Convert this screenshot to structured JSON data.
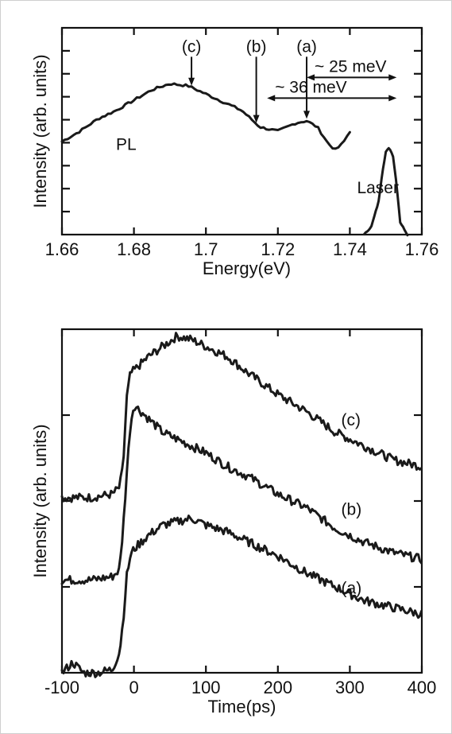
{
  "chart_data": [
    {
      "type": "line",
      "title": "",
      "xlabel": "Energy(eV)",
      "ylabel": "Intensity (arb. units)",
      "xlim": [
        1.66,
        1.76
      ],
      "ylim": [
        0,
        1
      ],
      "x_ticks": [
        1.66,
        1.68,
        1.7,
        1.72,
        1.74,
        1.76
      ],
      "x_tick_labels": [
        "1.66",
        "1.68",
        "1.7",
        "1.72",
        "1.74",
        "1.76"
      ],
      "y_tick_count": 8,
      "grid": false,
      "series": [
        {
          "name": "PL",
          "x": [
            1.66,
            1.665,
            1.67,
            1.675,
            1.68,
            1.685,
            1.69,
            1.695,
            1.7,
            1.705,
            1.71,
            1.715,
            1.72,
            1.725,
            1.728,
            1.731,
            1.734,
            1.736,
            1.738,
            1.74
          ],
          "y": [
            0.45,
            0.5,
            0.56,
            0.6,
            0.65,
            0.7,
            0.73,
            0.72,
            0.68,
            0.64,
            0.6,
            0.52,
            0.5,
            0.54,
            0.55,
            0.52,
            0.44,
            0.41,
            0.44,
            0.5
          ]
        },
        {
          "name": "Laser",
          "x": [
            1.744,
            1.746,
            1.748,
            1.749,
            1.75,
            1.751,
            1.752,
            1.753,
            1.754,
            1.756
          ],
          "y": [
            0.0,
            0.04,
            0.16,
            0.3,
            0.4,
            0.42,
            0.38,
            0.24,
            0.06,
            0.0
          ]
        }
      ],
      "series_labels": [
        {
          "text": "PL",
          "x": 1.675,
          "y": 0.41
        },
        {
          "text": "Laser",
          "x": 1.742,
          "y": 0.2
        }
      ],
      "markers": [
        {
          "label": "(c)",
          "x": 1.696,
          "y_top": 0.86,
          "y_bottom": 0.72
        },
        {
          "label": "(b)",
          "x": 1.714,
          "y_top": 0.86,
          "y_bottom": 0.54
        },
        {
          "label": "(a)",
          "x": 1.728,
          "y_top": 0.86,
          "y_bottom": 0.56
        }
      ],
      "spans": [
        {
          "text": "~ 25 meV",
          "x_start": 1.728,
          "x_end": 1.753,
          "y": 0.76
        },
        {
          "text": "~ 36 meV",
          "x_start": 1.717,
          "x_end": 1.753,
          "y": 0.66
        }
      ]
    },
    {
      "type": "line",
      "title": "",
      "xlabel": "Time(ps)",
      "ylabel": "Intensity (arb. units)",
      "xlim": [
        -100,
        400
      ],
      "ylim": [
        0,
        1
      ],
      "x_ticks": [
        -100,
        0,
        100,
        200,
        300,
        400
      ],
      "x_tick_labels": [
        "-100",
        "0",
        "100",
        "200",
        "300",
        "400"
      ],
      "y_tick_count": 3,
      "grid": false,
      "series": [
        {
          "name": "(c)",
          "x": [
            -100,
            -60,
            -30,
            -20,
            -15,
            -10,
            -5,
            0,
            20,
            40,
            60,
            80,
            100,
            130,
            160,
            200,
            240,
            280,
            320,
            360,
            400
          ],
          "y": [
            0.51,
            0.51,
            0.52,
            0.54,
            0.6,
            0.8,
            0.87,
            0.88,
            0.92,
            0.95,
            0.98,
            0.97,
            0.95,
            0.92,
            0.87,
            0.81,
            0.76,
            0.7,
            0.66,
            0.62,
            0.6
          ]
        },
        {
          "name": "(b)",
          "x": [
            -100,
            -60,
            -30,
            -20,
            -15,
            -10,
            -5,
            0,
            20,
            40,
            60,
            80,
            100,
            130,
            160,
            200,
            240,
            280,
            320,
            360,
            400
          ],
          "y": [
            0.27,
            0.27,
            0.28,
            0.3,
            0.42,
            0.58,
            0.72,
            0.78,
            0.74,
            0.7,
            0.68,
            0.66,
            0.64,
            0.6,
            0.57,
            0.52,
            0.48,
            0.42,
            0.38,
            0.35,
            0.33
          ]
        },
        {
          "name": "(a)",
          "x": [
            -100,
            -85,
            -70,
            -50,
            -30,
            -20,
            -15,
            -10,
            -5,
            0,
            20,
            40,
            60,
            80,
            100,
            130,
            160,
            200,
            240,
            280,
            320,
            360,
            400
          ],
          "y": [
            0.0,
            0.03,
            0.0,
            0.0,
            0.01,
            0.06,
            0.15,
            0.28,
            0.34,
            0.36,
            0.4,
            0.43,
            0.44,
            0.45,
            0.43,
            0.41,
            0.38,
            0.34,
            0.29,
            0.25,
            0.21,
            0.19,
            0.17
          ]
        }
      ],
      "series_labels": [
        {
          "text": "(c)",
          "x": 288,
          "y": 0.72
        },
        {
          "text": "(b)",
          "x": 288,
          "y": 0.46
        },
        {
          "text": "(a)",
          "x": 288,
          "y": 0.23
        }
      ]
    }
  ]
}
